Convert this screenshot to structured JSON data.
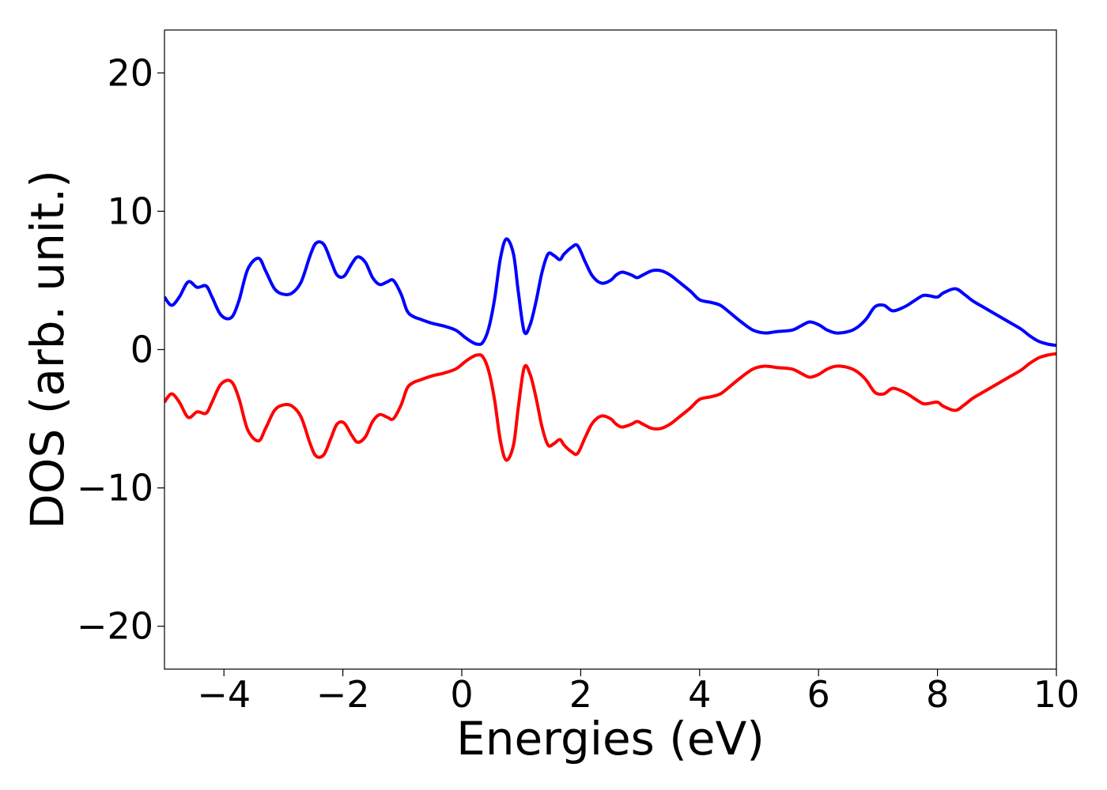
{
  "chart_data": {
    "type": "line",
    "title": "",
    "xlabel": "Energies (eV)",
    "ylabel": "DOS (arb. unit.)",
    "xlim": [
      -5,
      10
    ],
    "ylim": [
      -23.1,
      23.1
    ],
    "x_ticks": [
      -4,
      -2,
      0,
      2,
      4,
      6,
      8,
      10
    ],
    "x_tick_labels": [
      "−4",
      "−2",
      "0",
      "2",
      "4",
      "6",
      "8",
      "10"
    ],
    "y_ticks": [
      -20,
      -10,
      0,
      10,
      20
    ],
    "y_tick_labels": [
      "−20",
      "−10",
      "0",
      "10",
      "20"
    ],
    "grid": false,
    "legend": "none",
    "series": [
      {
        "color": "#0000ff",
        "x": [
          -5.0,
          -4.88,
          -4.75,
          -4.6,
          -4.45,
          -4.3,
          -4.2,
          -4.05,
          -3.88,
          -3.75,
          -3.6,
          -3.42,
          -3.3,
          -3.15,
          -3.0,
          -2.85,
          -2.7,
          -2.55,
          -2.45,
          -2.32,
          -2.2,
          -2.1,
          -1.98,
          -1.85,
          -1.75,
          -1.62,
          -1.5,
          -1.38,
          -1.25,
          -1.15,
          -1.02,
          -0.92,
          -0.82,
          -0.7,
          -0.5,
          -0.3,
          -0.1,
          0.05,
          0.15,
          0.25,
          0.35,
          0.45,
          0.55,
          0.65,
          0.75,
          0.87,
          0.95,
          1.05,
          1.15,
          1.25,
          1.35,
          1.45,
          1.55,
          1.65,
          1.72,
          1.85,
          1.95,
          2.08,
          2.2,
          2.35,
          2.5,
          2.6,
          2.7,
          2.85,
          2.95,
          3.05,
          3.2,
          3.35,
          3.5,
          3.65,
          3.85,
          4.0,
          4.2,
          4.35,
          4.5,
          4.7,
          4.9,
          5.1,
          5.3,
          5.55,
          5.7,
          5.85,
          6.0,
          6.15,
          6.3,
          6.5,
          6.65,
          6.8,
          6.95,
          7.1,
          7.25,
          7.45,
          7.6,
          7.75,
          7.85,
          8.0,
          8.1,
          8.3,
          8.45,
          8.6,
          8.8,
          9.0,
          9.2,
          9.4,
          9.55,
          9.7,
          9.85,
          10.0
        ],
        "y": [
          3.8,
          3.2,
          3.8,
          4.9,
          4.5,
          4.6,
          3.8,
          2.5,
          2.3,
          3.5,
          5.8,
          6.6,
          5.7,
          4.4,
          4.0,
          4.1,
          4.9,
          6.8,
          7.7,
          7.6,
          6.4,
          5.4,
          5.3,
          6.2,
          6.7,
          6.3,
          5.2,
          4.7,
          4.9,
          5.0,
          4.0,
          2.8,
          2.4,
          2.2,
          1.9,
          1.7,
          1.4,
          0.9,
          0.6,
          0.4,
          0.5,
          1.5,
          3.6,
          6.6,
          8.0,
          6.9,
          4.2,
          1.3,
          1.8,
          3.5,
          5.6,
          6.9,
          6.8,
          6.5,
          6.9,
          7.4,
          7.5,
          6.3,
          5.3,
          4.8,
          5.0,
          5.4,
          5.6,
          5.4,
          5.2,
          5.4,
          5.7,
          5.7,
          5.4,
          4.9,
          4.2,
          3.6,
          3.4,
          3.2,
          2.7,
          2.0,
          1.4,
          1.2,
          1.3,
          1.4,
          1.7,
          2.0,
          1.8,
          1.4,
          1.2,
          1.3,
          1.6,
          2.2,
          3.1,
          3.2,
          2.8,
          3.1,
          3.5,
          3.9,
          3.9,
          3.8,
          4.1,
          4.4,
          4.0,
          3.5,
          3.0,
          2.5,
          2.0,
          1.5,
          1.0,
          0.6,
          0.4,
          0.3
        ]
      },
      {
        "color": "#ff0000",
        "x": [
          -5.0,
          -4.88,
          -4.75,
          -4.6,
          -4.45,
          -4.3,
          -4.2,
          -4.05,
          -3.88,
          -3.75,
          -3.6,
          -3.42,
          -3.3,
          -3.15,
          -3.0,
          -2.85,
          -2.7,
          -2.55,
          -2.45,
          -2.32,
          -2.2,
          -2.1,
          -1.98,
          -1.85,
          -1.75,
          -1.62,
          -1.5,
          -1.38,
          -1.25,
          -1.15,
          -1.02,
          -0.92,
          -0.82,
          -0.7,
          -0.5,
          -0.3,
          -0.1,
          0.05,
          0.15,
          0.25,
          0.35,
          0.45,
          0.55,
          0.65,
          0.75,
          0.87,
          0.95,
          1.05,
          1.15,
          1.25,
          1.35,
          1.45,
          1.55,
          1.65,
          1.72,
          1.85,
          1.95,
          2.08,
          2.2,
          2.35,
          2.5,
          2.6,
          2.7,
          2.85,
          2.95,
          3.05,
          3.2,
          3.35,
          3.5,
          3.65,
          3.85,
          4.0,
          4.2,
          4.35,
          4.5,
          4.7,
          4.9,
          5.1,
          5.3,
          5.55,
          5.7,
          5.85,
          6.0,
          6.15,
          6.3,
          6.5,
          6.65,
          6.8,
          6.95,
          7.1,
          7.25,
          7.45,
          7.6,
          7.75,
          7.85,
          8.0,
          8.1,
          8.3,
          8.45,
          8.6,
          8.8,
          9.0,
          9.2,
          9.4,
          9.55,
          9.7,
          9.85,
          10.0
        ],
        "y": [
          -3.8,
          -3.2,
          -3.8,
          -4.9,
          -4.5,
          -4.6,
          -3.8,
          -2.5,
          -2.3,
          -3.5,
          -5.8,
          -6.6,
          -5.7,
          -4.4,
          -4.0,
          -4.1,
          -4.9,
          -6.8,
          -7.7,
          -7.6,
          -6.4,
          -5.4,
          -5.3,
          -6.2,
          -6.7,
          -6.3,
          -5.2,
          -4.7,
          -4.9,
          -5.0,
          -4.0,
          -2.8,
          -2.4,
          -2.2,
          -1.9,
          -1.7,
          -1.4,
          -0.9,
          -0.6,
          -0.4,
          -0.5,
          -1.5,
          -3.6,
          -6.6,
          -8.0,
          -6.9,
          -4.2,
          -1.3,
          -1.8,
          -3.5,
          -5.6,
          -6.9,
          -6.8,
          -6.5,
          -6.9,
          -7.4,
          -7.5,
          -6.3,
          -5.3,
          -4.8,
          -5.0,
          -5.4,
          -5.6,
          -5.4,
          -5.2,
          -5.4,
          -5.7,
          -5.7,
          -5.4,
          -4.9,
          -4.2,
          -3.6,
          -3.4,
          -3.2,
          -2.7,
          -2.0,
          -1.4,
          -1.2,
          -1.3,
          -1.4,
          -1.7,
          -2.0,
          -1.8,
          -1.4,
          -1.2,
          -1.3,
          -1.6,
          -2.2,
          -3.1,
          -3.2,
          -2.8,
          -3.1,
          -3.5,
          -3.9,
          -3.9,
          -3.8,
          -4.1,
          -4.4,
          -4.0,
          -3.5,
          -3.0,
          -2.5,
          -2.0,
          -1.5,
          -1.0,
          -0.6,
          -0.4,
          -0.3
        ]
      }
    ]
  }
}
